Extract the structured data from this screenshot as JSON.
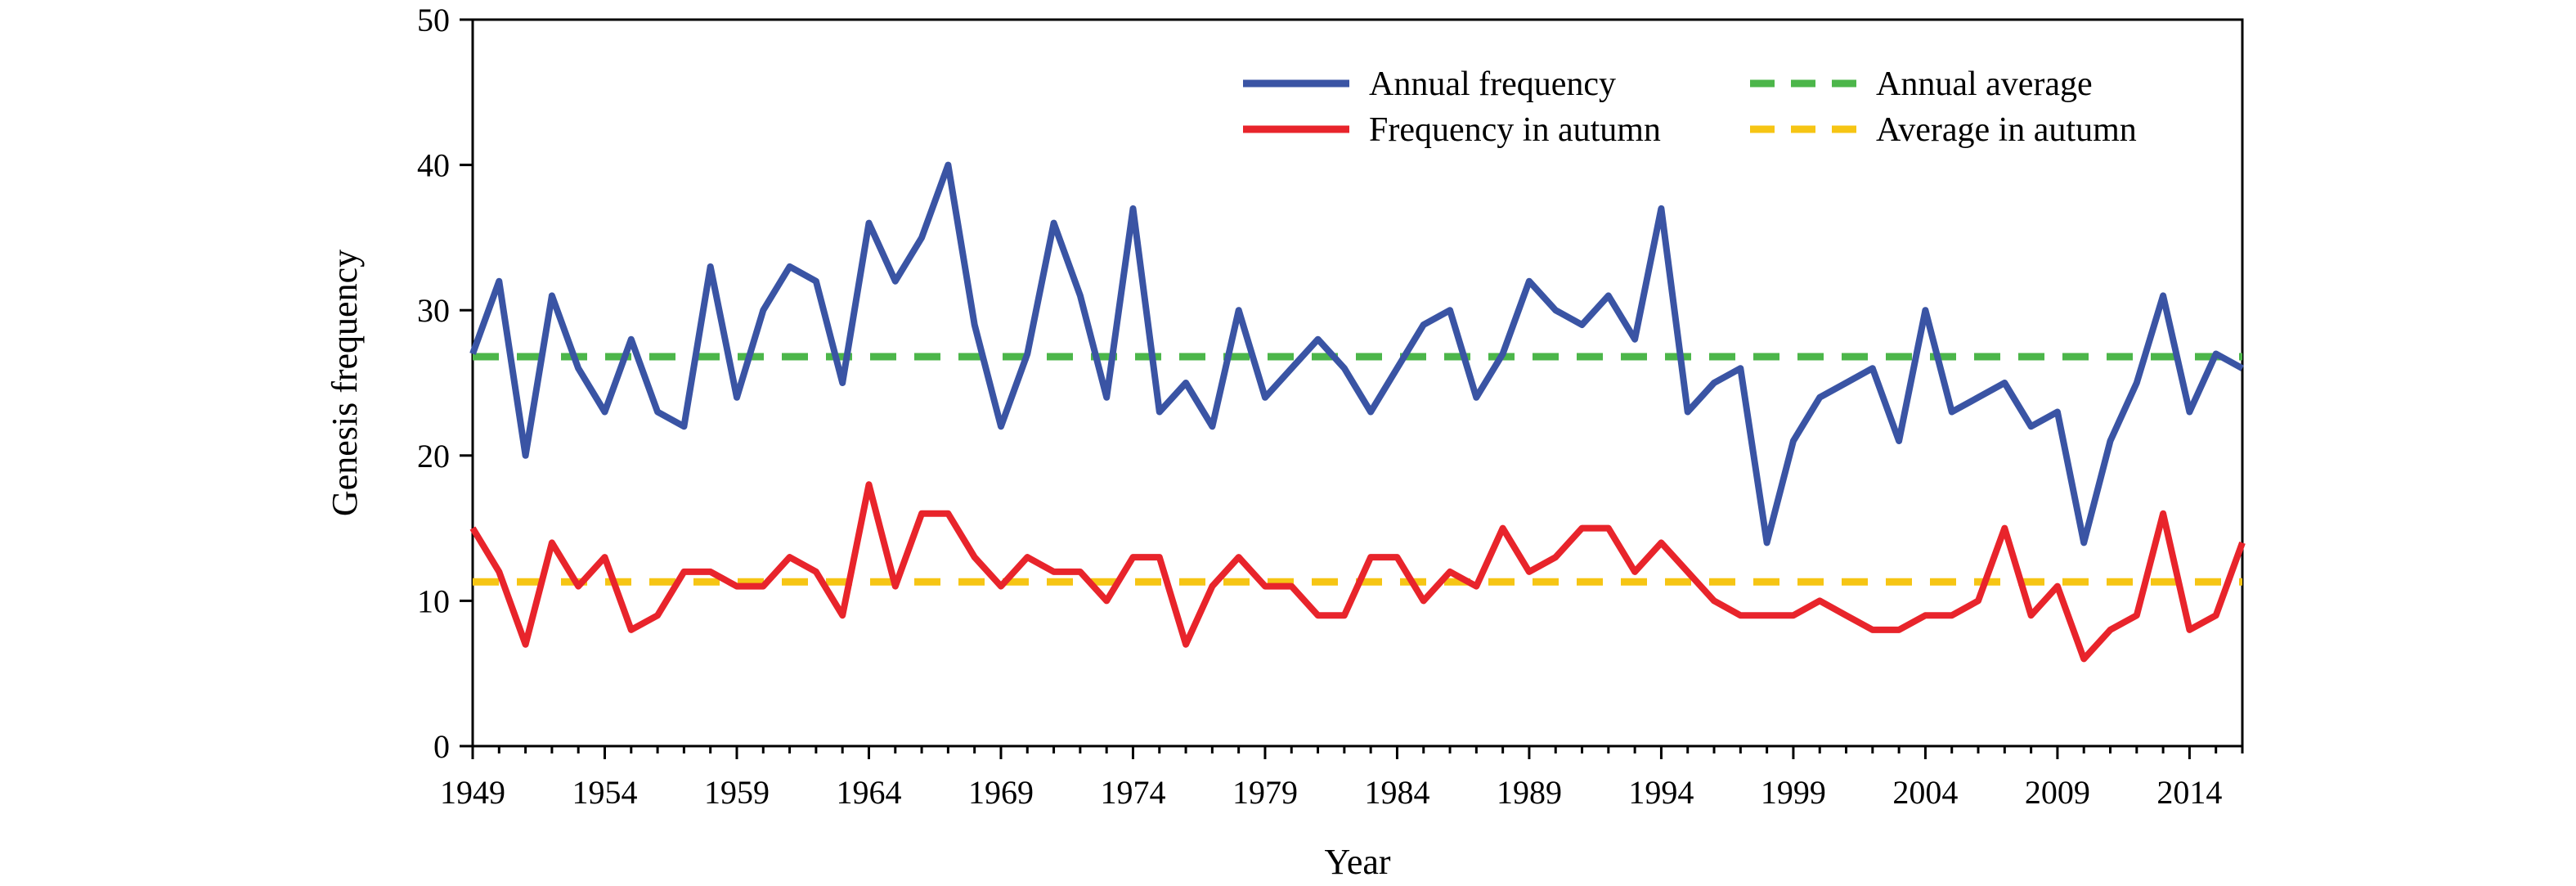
{
  "chart_data": {
    "type": "line",
    "title": "",
    "xlabel": "Year",
    "ylabel": "Genesis frequency",
    "xlim": [
      1949,
      2016
    ],
    "ylim": [
      0,
      50
    ],
    "x_ticks": [
      "1949",
      "1954",
      "1959",
      "1964",
      "1969",
      "1974",
      "1979",
      "1984",
      "1989",
      "1994",
      "1999",
      "2004",
      "2009",
      "2014"
    ],
    "y_ticks": [
      "0",
      "10",
      "20",
      "30",
      "40",
      "50"
    ],
    "grid": false,
    "legend_position": "top-right",
    "x": [
      1949,
      1950,
      1951,
      1952,
      1953,
      1954,
      1955,
      1956,
      1957,
      1958,
      1959,
      1960,
      1961,
      1962,
      1963,
      1964,
      1965,
      1966,
      1967,
      1968,
      1969,
      1970,
      1971,
      1972,
      1973,
      1974,
      1975,
      1976,
      1977,
      1978,
      1979,
      1980,
      1981,
      1982,
      1983,
      1984,
      1985,
      1986,
      1987,
      1988,
      1989,
      1990,
      1991,
      1992,
      1993,
      1994,
      1995,
      1996,
      1997,
      1998,
      1999,
      2000,
      2001,
      2002,
      2003,
      2004,
      2005,
      2006,
      2007,
      2008,
      2009,
      2010,
      2011,
      2012,
      2013,
      2014,
      2015,
      2016
    ],
    "series": [
      {
        "name": "Annual frequency",
        "color": "#3a54a4",
        "style": "solid",
        "values": [
          27,
          32,
          20,
          31,
          26,
          23,
          28,
          23,
          22,
          33,
          24,
          30,
          33,
          32,
          25,
          36,
          32,
          35,
          40,
          29,
          22,
          27,
          36,
          31,
          24,
          37,
          23,
          25,
          22,
          30,
          24,
          26,
          28,
          26,
          23,
          26,
          29,
          30,
          24,
          27,
          32,
          30,
          29,
          31,
          28,
          37,
          23,
          25,
          26,
          14,
          21,
          24,
          25,
          26,
          21,
          30,
          23,
          24,
          25,
          22,
          23,
          14,
          21,
          25,
          31,
          23,
          27,
          26
        ]
      },
      {
        "name": "Frequency in autumn",
        "color": "#e8242b",
        "style": "solid",
        "values": [
          15,
          12,
          7,
          14,
          11,
          13,
          8,
          9,
          12,
          12,
          11,
          11,
          13,
          12,
          9,
          18,
          11,
          16,
          16,
          13,
          11,
          13,
          12,
          12,
          10,
          13,
          13,
          7,
          11,
          13,
          11,
          11,
          9,
          9,
          13,
          13,
          10,
          12,
          11,
          15,
          12,
          13,
          15,
          15,
          12,
          14,
          12,
          10,
          9,
          9,
          9,
          10,
          9,
          8,
          8,
          9,
          9,
          10,
          15,
          9,
          11,
          6,
          8,
          9,
          16,
          8,
          9,
          14
        ]
      },
      {
        "name": "Annual average",
        "color": "#4cb64a",
        "style": "dashed",
        "constant": 26.8
      },
      {
        "name": "Average in autumn",
        "color": "#f6c514",
        "style": "dashed",
        "constant": 11.3
      }
    ]
  }
}
